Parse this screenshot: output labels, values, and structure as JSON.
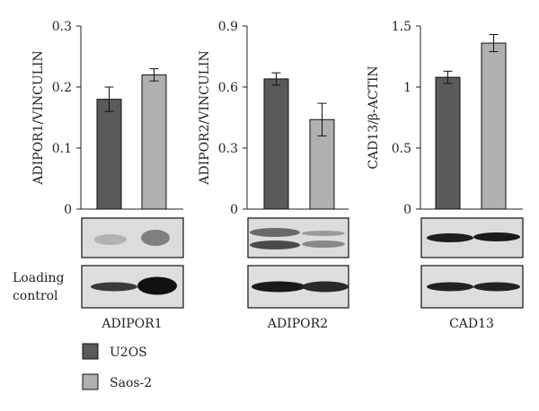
{
  "chart_data": [
    {
      "type": "bar",
      "categories": [
        "U2OS",
        "Saos-2"
      ],
      "values": [
        0.18,
        0.22
      ],
      "errors": [
        0.02,
        0.01
      ],
      "ylabel": "ADIPOR1/VINCULIN",
      "ylim": [
        0,
        0.3
      ],
      "yticks": [
        "0",
        "0.1",
        "0.2",
        "0.3"
      ],
      "blot_label": "ADIPOR1"
    },
    {
      "type": "bar",
      "categories": [
        "U2OS",
        "Saos-2"
      ],
      "values": [
        0.64,
        0.44
      ],
      "errors": [
        0.03,
        0.08
      ],
      "ylabel": "ADIPOR2/VINCULIN",
      "ylim": [
        0,
        0.9
      ],
      "yticks": [
        "0",
        "0.3",
        "0.6",
        "0.9"
      ],
      "blot_label": "ADIPOR2"
    },
    {
      "type": "bar",
      "categories": [
        "U2OS",
        "Saos-2"
      ],
      "values": [
        1.08,
        1.36
      ],
      "errors": [
        0.05,
        0.07
      ],
      "ylabel": "CAD13/β-ACTIN",
      "ylim": [
        0,
        1.5
      ],
      "yticks": [
        "0",
        "0.5",
        "1",
        "1.5"
      ],
      "blot_label": "CAD13"
    }
  ],
  "loading_control_label": "Loading\ncontrol",
  "loading_control_line1": "Loading",
  "loading_control_line2": "control",
  "legend": [
    {
      "name": "U2OS",
      "color": "#5a5a5a"
    },
    {
      "name": "Saos-2",
      "color": "#b0b0b0"
    }
  ],
  "colors": {
    "u2os": "#5a5a5a",
    "saos2": "#b0b0b0"
  }
}
